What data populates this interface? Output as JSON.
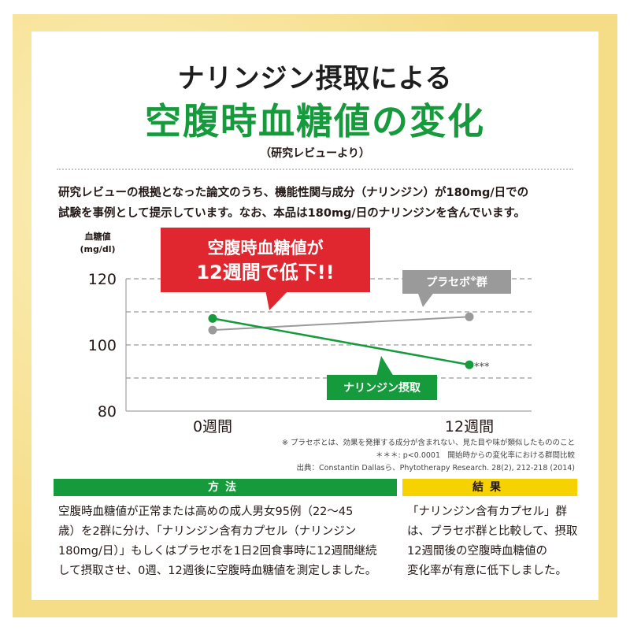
{
  "title_line1": "ナリンジン摂取による",
  "title_line2": "空腹時血糖値の変化",
  "title_sub": "（研究レビューより）",
  "intro_lines": [
    "研究レビューの根拠となった論文のうち、機能性関与成分（ナリンジン）が180mg/日での",
    "試験を事例として提示しています。なお、本品は180mg/日のナリンジンを含んでいます。"
  ],
  "callout_lines": [
    "空腹時血糖値が",
    "12週間で低下!!"
  ],
  "chart_data": {
    "type": "line",
    "ylabel_lines": [
      "血糖値",
      "(mg/dl)"
    ],
    "y_ticks": [
      "120",
      "100",
      "80"
    ],
    "ylim": [
      80,
      120
    ],
    "categories": [
      "0週間",
      "12週間"
    ],
    "grid": true,
    "series": [
      {
        "name": "プラセボ※群",
        "label_main": "プラセボ",
        "label_sup": "※",
        "label_tail": "群",
        "values": [
          104.5,
          108.5
        ],
        "color": "#9a9a9a"
      },
      {
        "name": "ナリンジン摂取",
        "values": [
          108,
          94
        ],
        "color": "#159a3c"
      }
    ],
    "annotation": "***"
  },
  "notes": [
    "※ プラセボとは、効果を発揮する成分が含まれない、見た目や味が類似したもののこと",
    "＊＊＊: p<0.0001　開始時からの変化率における群間比較",
    "出典：Constantin Dallasら、Phytotherapy Research. 28(2), 212-218 (2014)"
  ],
  "method": {
    "heading": "方法",
    "lines": [
      "空腹時血糖値が正常または高めの成人男女95例（22～45",
      "歳）を2群に分け、「ナリンジン含有カプセル（ナリンジン",
      "180mg/日）」もしくはプラセボを1日2回食事時に12週間継続",
      "して摂取させ、0週、12週後に空腹時血糖値を測定しました。"
    ]
  },
  "result": {
    "heading": "結果",
    "lines": [
      "「ナリンジン含有カプセル」群",
      "は、プラセボ群と比較して、摂取",
      "12週間後の空腹時血糖値の",
      "変化率が有意に低下しました。"
    ]
  },
  "colors": {
    "green": "#159a3c",
    "red": "#e0262e",
    "gray": "#9a9a9a",
    "yellow": "#f5d200",
    "frame": "#f5dc86"
  }
}
